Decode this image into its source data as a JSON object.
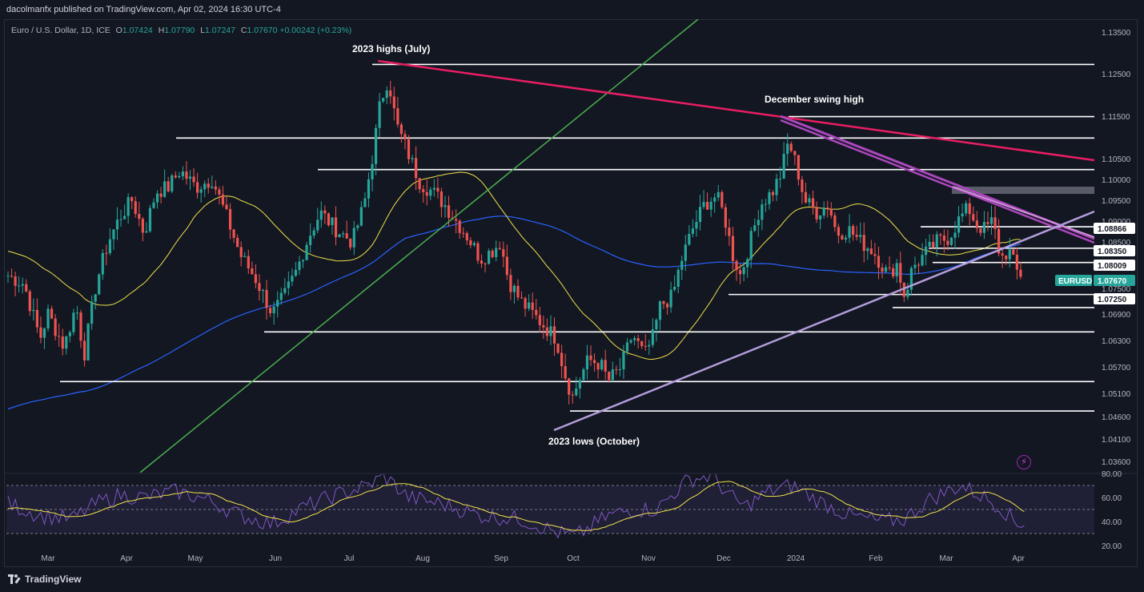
{
  "header": {
    "publisher": "dacolmanfx published on TradingView.com, Apr 02, 2024 16:30 UTC-4"
  },
  "legend": {
    "symbol": "Euro / U.S. Dollar, 1D, ICE",
    "o_label": "O",
    "o": "1.07424",
    "h_label": "H",
    "h": "1.07790",
    "l_label": "L",
    "l": "1.07247",
    "c_label": "C",
    "c": "1.07670",
    "change": "+0.00242 (+0.23%)"
  },
  "chart_data": {
    "type": "candlestick",
    "symbol": "EURUSD",
    "last_price": 1.0767,
    "price_axis_ticks": [
      1.135,
      1.125,
      1.115,
      1.105,
      1.1,
      1.095,
      1.09,
      1.085,
      1.075,
      1.069,
      1.063,
      1.057,
      1.051,
      1.046,
      1.041,
      1.036
    ],
    "price_axis_labels": [
      "1.13500",
      "1.12500",
      "1.11500",
      "1.10500",
      "1.10000",
      "1.09500",
      "1.09000",
      "1.08500",
      "1.07500",
      "1.06900",
      "1.06300",
      "1.05700",
      "1.05100",
      "1.04600",
      "1.04100",
      "1.03600"
    ],
    "highlighted_levels": [
      {
        "label": "1.08866",
        "value": 1.08866
      },
      {
        "label": "1.08350",
        "value": 1.0835
      },
      {
        "label": "1.08009",
        "value": 1.08009
      },
      {
        "label": "1.07250",
        "value": 1.0725
      }
    ],
    "symbol_tag": {
      "label": "EURUSD",
      "price": "1.07670"
    },
    "time_axis": [
      "Mar",
      "Apr",
      "May",
      "Jun",
      "Jul",
      "Aug",
      "Sep",
      "Oct",
      "Nov",
      "Dec",
      "2024",
      "Feb",
      "Mar",
      "Apr"
    ],
    "annotations": [
      "2023 highs (July)",
      "December swing high",
      "2023 lows (October)"
    ],
    "horizontal_levels": [
      1.1272,
      1.1148,
      1.1097,
      1.1022,
      1.0886,
      1.0835,
      1.0801,
      1.0725,
      1.0694,
      1.0636,
      1.0518,
      1.0448
    ],
    "rsi_panel": {
      "ticks": [
        80,
        60,
        40,
        20
      ],
      "tick_labels": [
        "80.00",
        "60.00",
        "40.00",
        "20.00"
      ],
      "band": [
        30,
        70
      ]
    },
    "colors": {
      "up": "#26a69a",
      "down": "#ef5350",
      "ma50": "#f0e14a",
      "ma200": "#2962ff",
      "trend_pink": "#e91e63",
      "trend_green": "#4caf50",
      "trend_lavender": "#b39ddb",
      "trend_purple": "#ab47bc",
      "rsi": "#7e57c2",
      "rsi_ma": "#f0e14a"
    }
  },
  "brand": {
    "name": "TradingView"
  }
}
